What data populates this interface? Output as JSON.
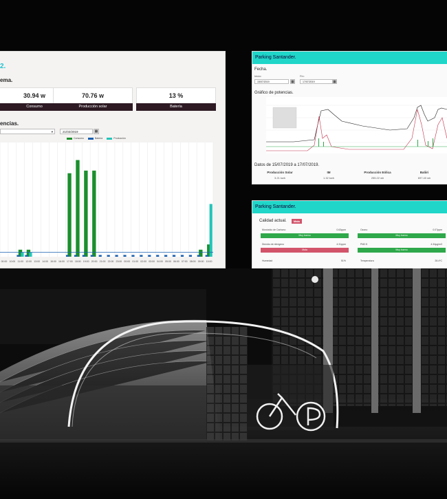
{
  "left_dashboard": {
    "title": "2.",
    "section_sistema": "ema.",
    "cards": [
      {
        "value": "30.94 w",
        "label": "Consumo"
      },
      {
        "value": "70.76 w",
        "label": "Producción solar"
      },
      {
        "value": "13 %",
        "label": "Batería"
      }
    ],
    "section_potencias": "encias.",
    "date_value": "21/02/2019",
    "legend": [
      "Consumo",
      "Batería",
      "Producción"
    ],
    "colors": {
      "consumo": "#1a8f2c",
      "bateria": "#1a5fb0",
      "produccion": "#23c5b9"
    },
    "time_ticks": [
      "00:00",
      "10:00",
      "11:00",
      "12:00",
      "13:00",
      "14:00",
      "15:00",
      "16:00",
      "17:00",
      "18:00",
      "19:00",
      "20:00",
      "21:00",
      "22:00",
      "23:00",
      "00:00",
      "01:00",
      "02:00",
      "03:00",
      "04:00",
      "05:00",
      "06:00",
      "07:00",
      "08:00",
      "09:00",
      "10:00"
    ]
  },
  "chart_data": {
    "type": "bar",
    "categories": [
      "00:00",
      "10:00",
      "11:00",
      "12:00",
      "13:00",
      "14:00",
      "15:00",
      "16:00",
      "17:00",
      "18:00",
      "19:00",
      "20:00",
      "21:00",
      "22:00",
      "23:00",
      "00:00",
      "01:00",
      "02:00",
      "03:00",
      "04:00",
      "05:00",
      "06:00",
      "07:00",
      "08:00",
      "09:00",
      "10:00"
    ],
    "series": [
      {
        "name": "Consumo",
        "values": [
          0,
          0,
          8,
          8,
          0,
          0,
          0,
          0,
          95,
          110,
          98,
          98,
          0,
          0,
          0,
          0,
          0,
          0,
          0,
          0,
          0,
          0,
          0,
          0,
          8,
          14
        ]
      },
      {
        "name": "Batería",
        "values": [
          0,
          0,
          2,
          2,
          0,
          0,
          0,
          0,
          2,
          2,
          2,
          2,
          2,
          2,
          2,
          2,
          2,
          2,
          2,
          2,
          2,
          2,
          2,
          2,
          2,
          2
        ]
      },
      {
        "name": "Producción",
        "values": [
          0,
          0,
          5,
          5,
          0,
          0,
          0,
          0,
          0,
          0,
          0,
          0,
          0,
          0,
          0,
          0,
          0,
          0,
          0,
          0,
          0,
          0,
          0,
          0,
          0,
          60
        ]
      }
    ],
    "ylim": [
      0,
      130
    ]
  },
  "top_right": {
    "title": "Parking Santander.",
    "fecha": "Fecha.",
    "inicio_label": "Inicio:",
    "inicio_value": "15/07/2019",
    "fin_label": "Fin:",
    "fin_value": "17/07/2019",
    "grafico": "Gráfico de potencias.",
    "datos_title": "Datos de 15/07/2019 a 17/07/2019.",
    "stats": [
      {
        "head": "Producción Solar",
        "value": "3.21 kwh"
      },
      {
        "head": "IM",
        "value": "1.32 kwh"
      },
      {
        "head": "Producción Eólica",
        "value": "255.22 wh"
      },
      {
        "head": "Baliiri",
        "value": "697.40 wh"
      }
    ]
  },
  "bottom_right": {
    "title": "Parking Santander.",
    "calidad": "Calidad actual.",
    "badge": "Mala",
    "items": [
      {
        "label": "Monóxido de Carbono",
        "value": "0.63ppm",
        "status": "Muy bueno",
        "bad": false
      },
      {
        "label": "Ozono",
        "value": "0.07ppm",
        "status": "Muy bueno",
        "bad": false
      },
      {
        "label": "Dióxido de nitrógeno",
        "value": "4.31ppm",
        "status": "Mala",
        "bad": true
      },
      {
        "label": "PM2.5",
        "value": "4.34μg/m3",
        "status": "Muy bueno",
        "bad": false
      }
    ],
    "humedad_label": "Humedad",
    "humedad_value": "51%",
    "temp_label": "Temperatura",
    "temp_value": "28.4ºC"
  }
}
